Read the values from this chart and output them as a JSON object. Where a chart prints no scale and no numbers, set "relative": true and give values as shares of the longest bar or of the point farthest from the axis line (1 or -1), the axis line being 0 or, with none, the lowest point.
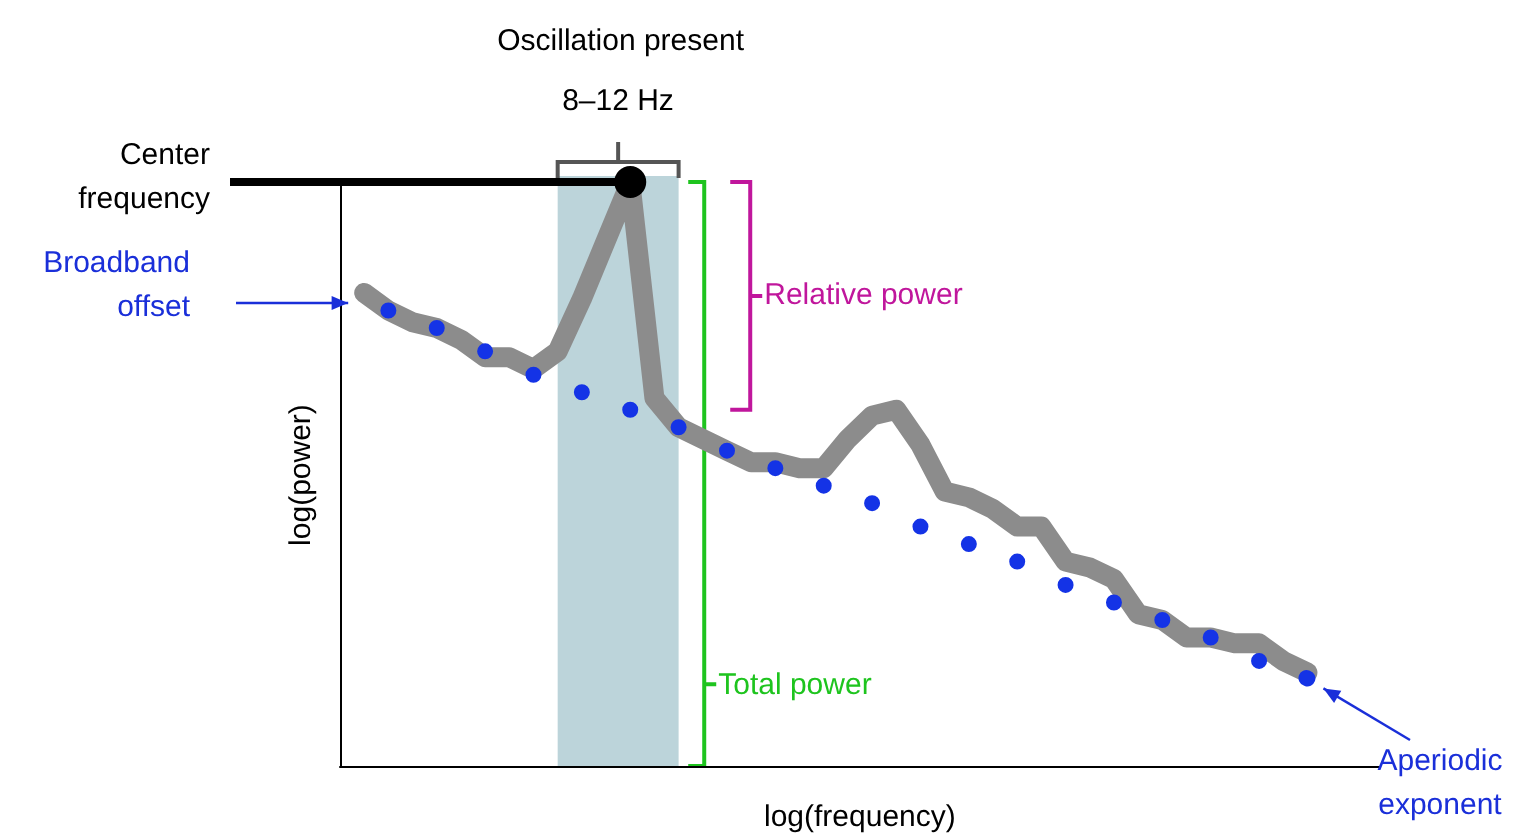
{
  "chart_data": {
    "type": "line",
    "relative": true,
    "title": "Oscillation present",
    "xlabel": "log(frequency)",
    "ylabel": "log(power)",
    "categories": [
      null,
      null,
      null,
      null,
      null,
      null,
      null,
      null,
      null,
      null,
      null,
      null,
      null,
      null,
      null,
      null,
      null,
      null,
      null,
      null,
      null,
      null,
      null,
      null,
      null,
      null,
      null,
      null,
      null,
      null,
      null,
      null,
      null,
      null,
      null,
      null,
      null,
      null,
      null,
      null,
      null,
      null,
      null,
      null
    ],
    "series": [
      {
        "color": "#8c8c8c",
        "values": [
          null,
          0.81,
          0.78,
          0.76,
          0.75,
          0.73,
          0.7,
          0.7,
          0.68,
          0.71,
          0.8,
          0.9,
          1.0,
          0.63,
          0.58,
          0.56,
          0.54,
          0.52,
          0.52,
          0.51,
          0.51,
          0.56,
          0.6,
          0.61,
          0.55,
          0.47,
          0.46,
          0.44,
          0.41,
          0.41,
          0.35,
          0.34,
          0.32,
          0.26,
          0.25,
          0.22,
          0.22,
          0.21,
          0.21,
          0.18,
          0.16,
          null,
          null,
          null
        ]
      },
      {
        "color": "#1433e6",
        "line_style": "dotted",
        "values": [
          null,
          null,
          0.78,
          null,
          0.75,
          null,
          0.71,
          null,
          0.67,
          null,
          0.64,
          null,
          0.61,
          null,
          0.58,
          null,
          0.54,
          null,
          0.51,
          null,
          0.48,
          null,
          0.45,
          null,
          0.41,
          null,
          0.38,
          null,
          0.35,
          null,
          0.31,
          null,
          0.28,
          null,
          0.25,
          null,
          0.22,
          null,
          0.18,
          null,
          0.15,
          null,
          null,
          null
        ]
      }
    ],
    "annotations": [
      "Center frequency",
      "8–12 Hz",
      "Broadband offset",
      "Relative power",
      "Total power",
      "Aperiodic exponent"
    ],
    "grid": false
  }
}
